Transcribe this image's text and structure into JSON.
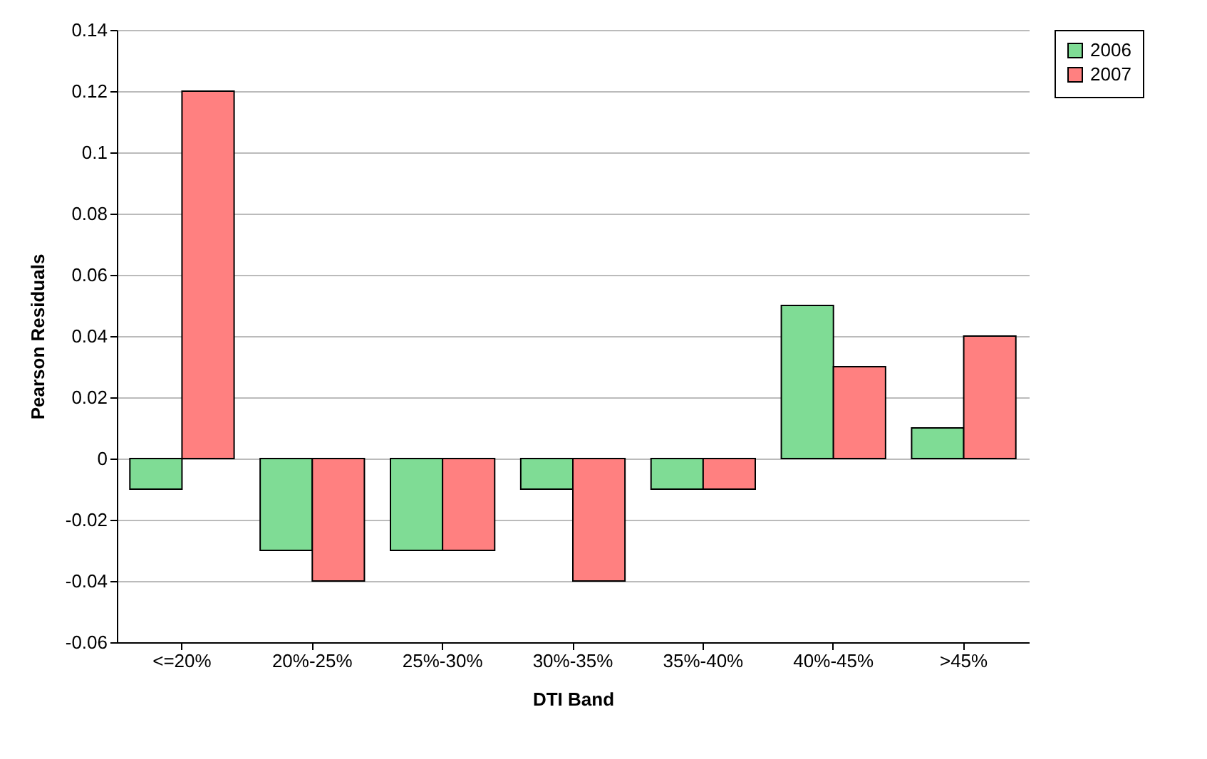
{
  "chart_data": {
    "type": "bar",
    "xlabel": "DTI Band",
    "ylabel": "Pearson Residuals",
    "categories": [
      "<=20%",
      "20%-25%",
      "25%-30%",
      "30%-35%",
      "35%-40%",
      "40%-45%",
      ">45%"
    ],
    "series": [
      {
        "name": "2006",
        "color": "#7fdc95",
        "values": [
          -0.01,
          -0.03,
          -0.03,
          -0.01,
          -0.01,
          0.05,
          0.01
        ]
      },
      {
        "name": "2007",
        "color": "#ff8080",
        "values": [
          0.12,
          -0.04,
          -0.03,
          -0.04,
          -0.01,
          0.03,
          0.04
        ]
      }
    ],
    "ylim": [
      -0.06,
      0.14
    ],
    "yticks": [
      -0.06,
      -0.04,
      -0.02,
      0,
      0.02,
      0.04,
      0.06,
      0.08,
      0.1,
      0.12,
      0.14
    ],
    "grid": "y",
    "legend": "right"
  }
}
